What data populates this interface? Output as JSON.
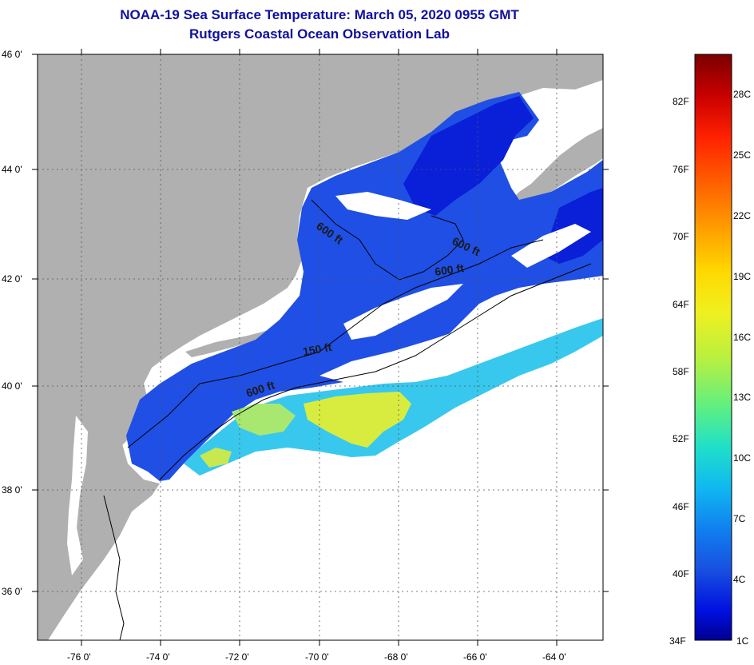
{
  "title": "NOAA-19 Sea Surface Temperature:  March 05, 2020 0955 GMT",
  "subtitle": "Rutgers Coastal Ocean Observation Lab",
  "lat_labels": [
    "46 0'",
    "44 0'",
    "42 0'",
    "40 0'",
    "38 0'",
    "36 0'"
  ],
  "lon_labels": [
    "-76 0'",
    "-74 0'",
    "-72 0'",
    "-70 0'",
    "-68 0'",
    "-66 0'",
    "-64 0'"
  ],
  "contour_labels": [
    "600 ft",
    "600 ft",
    "600 ft",
    "150 ft",
    "600 ft"
  ],
  "colorbar": {
    "fahrenheit": [
      "82F",
      "76F",
      "70F",
      "64F",
      "58F",
      "52F",
      "46F",
      "40F",
      "34F"
    ],
    "celsius": [
      "28C",
      "25C",
      "22C",
      "19C",
      "16C",
      "13C",
      "10C",
      "7C",
      "4C",
      "1C"
    ],
    "colors": [
      "#7a0000",
      "#c80000",
      "#ff2000",
      "#ff6000",
      "#ffa000",
      "#ffd800",
      "#f0f020",
      "#b8f040",
      "#60f080",
      "#20e0c8",
      "#10b8f0",
      "#1080f0",
      "#1850e0",
      "#0010e0",
      "#000090"
    ]
  },
  "colors": {
    "land": "#b0b0b0",
    "ocean_cold": "#1f4fe4",
    "ocean_deep": "#0a1fd8",
    "ocean_warm": "#38c8ee",
    "ocean_hot": "#d8ec40",
    "cloud": "#ffffff",
    "title": "#1010a0"
  }
}
